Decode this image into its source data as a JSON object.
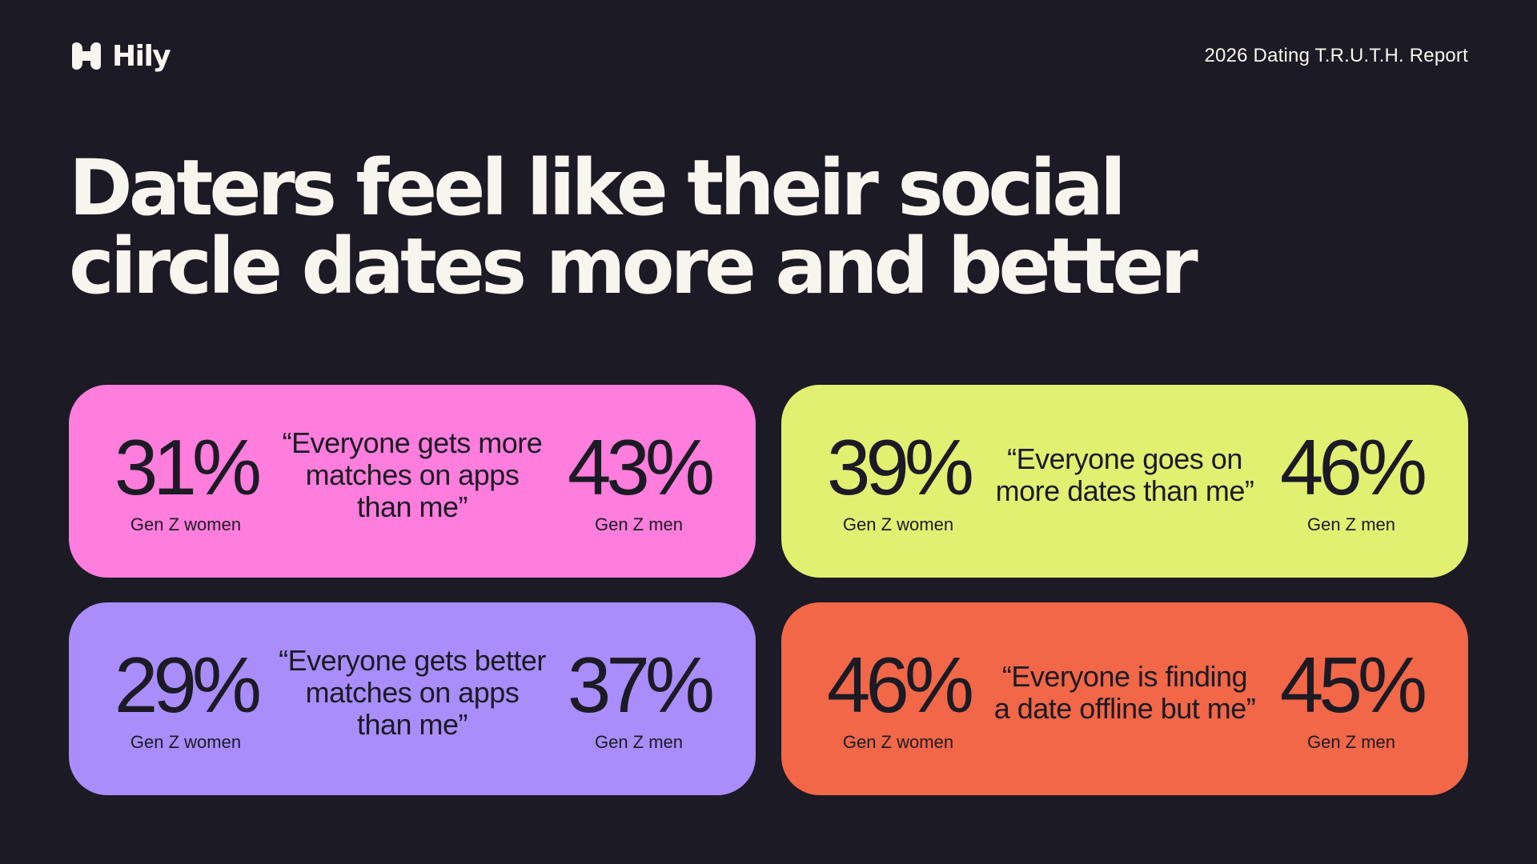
{
  "brand": {
    "name": "Hily",
    "logo_icon": "hily-logo-mark"
  },
  "report_label": "2026 Dating T.R.U.T.H. Report",
  "headline": "Daters feel like their social circle dates more and better",
  "colors": {
    "background": "#1c1a24",
    "text_light": "#f7f5ee",
    "text_dark": "#1c1a24",
    "pink": "#ff7ddc",
    "lime": "#e1f071",
    "purple": "#a98dfb",
    "orange": "#f16747"
  },
  "cards": [
    {
      "color": "#ff7ddc",
      "left_value": "31%",
      "left_label": "Gen Z women",
      "quote": "“Everyone gets more matches on apps than me”",
      "right_value": "43%",
      "right_label": "Gen Z men"
    },
    {
      "color": "#e1f071",
      "left_value": "39%",
      "left_label": "Gen Z women",
      "quote": "“Everyone goes on more dates than me”",
      "right_value": "46%",
      "right_label": "Gen Z men"
    },
    {
      "color": "#a98dfb",
      "left_value": "29%",
      "left_label": "Gen Z women",
      "quote": "“Everyone gets better matches on apps than me”",
      "right_value": "37%",
      "right_label": "Gen Z men"
    },
    {
      "color": "#f16747",
      "left_value": "46%",
      "left_label": "Gen Z women",
      "quote": "“Everyone is finding a date offline but me”",
      "right_value": "45%",
      "right_label": "Gen Z men"
    }
  ]
}
